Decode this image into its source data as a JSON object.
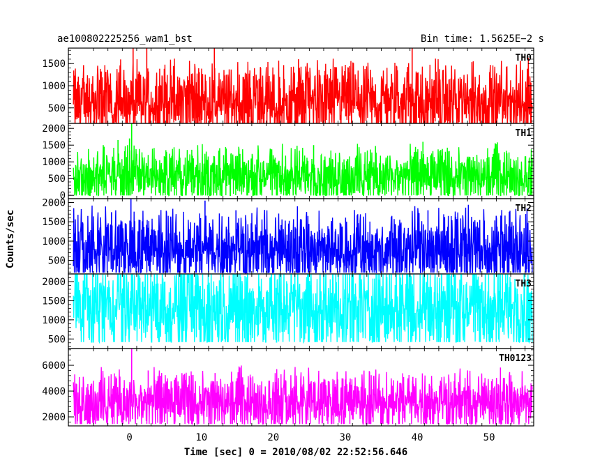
{
  "header": {
    "title": "ae100802225256_wam1_bst",
    "bin_time": "Bin time: 1.5625E−2 s"
  },
  "axes": {
    "xlabel": "Time [sec] 0 = 2010/08/02 22:52:56.646",
    "ylabel": "Counts/sec"
  },
  "chart_data": {
    "type": "line",
    "title": "ae100802225256_wam1_bst",
    "subtitle": "Bin time: 1.5625E−2 s",
    "xlabel": "Time [sec] 0 = 2010/08/02 22:52:56.646",
    "ylabel": "Counts/sec",
    "xlim": [
      -8.5,
      56.2
    ],
    "x_range_data": [
      -7.8,
      56.0
    ],
    "xticks": [
      0,
      10,
      20,
      30,
      40,
      50
    ],
    "grid": false,
    "panels": [
      {
        "name": "TH0",
        "color": "#ff0000",
        "ylim": [
          150,
          1850
        ],
        "yticks": [
          500,
          1000,
          1500
        ],
        "typical_range": [
          120,
          1250
        ],
        "mean": 620,
        "spikes": [
          [
            0.5,
            1900
          ],
          [
            2.4,
            1850
          ],
          [
            11.8,
            1900
          ],
          [
            39.3,
            1900
          ],
          [
            23.5,
            1600
          ]
        ]
      },
      {
        "name": "TH1",
        "color": "#00ff00",
        "ylim": [
          -100,
          2150
        ],
        "yticks": [
          0,
          500,
          1000,
          1500,
          2000
        ],
        "typical_range": [
          50,
          1150
        ],
        "mean": 560,
        "spikes": [
          [
            0.3,
            2200
          ],
          [
            -1.6,
            1650
          ],
          [
            0.0,
            1700
          ],
          [
            25.6,
            1500
          ],
          [
            40.8,
            1600
          ]
        ]
      },
      {
        "name": "TH2",
        "color": "#0000ff",
        "ylim": [
          150,
          2100
        ],
        "yticks": [
          500,
          1000,
          1500,
          2000
        ],
        "typical_range": [
          250,
          1550
        ],
        "mean": 760,
        "spikes": [
          [
            0.2,
            2150
          ],
          [
            -2.5,
            1750
          ],
          [
            10.5,
            2050
          ],
          [
            14.8,
            1800
          ],
          [
            41.5,
            1800
          ]
        ]
      },
      {
        "name": "TH3",
        "color": "#00ffff",
        "ylim": [
          250,
          2200
        ],
        "yticks": [
          500,
          1000,
          1500,
          2000
        ],
        "typical_range": [
          500,
          2150
        ],
        "mean": 1280,
        "spikes": []
      },
      {
        "name": "TH0123",
        "color": "#ff00ff",
        "ylim": [
          1300,
          7300
        ],
        "yticks": [
          2000,
          4000,
          6000
        ],
        "typical_range": [
          1600,
          4700
        ],
        "mean": 3100,
        "spikes": [
          [
            0.3,
            7300
          ],
          [
            2.6,
            5600
          ],
          [
            -1.8,
            5000
          ],
          [
            11.9,
            5400
          ],
          [
            39.4,
            5100
          ]
        ]
      }
    ]
  }
}
